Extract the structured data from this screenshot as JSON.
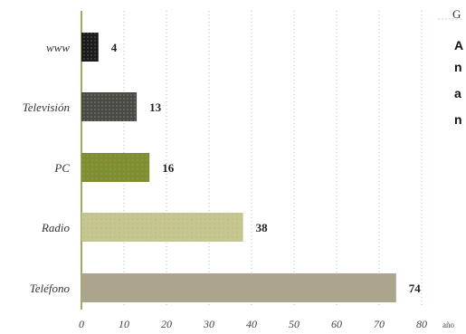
{
  "chart_data": {
    "type": "bar",
    "orientation": "horizontal",
    "categories": [
      "www",
      "Televisión",
      "PC",
      "Radio",
      "Teléfono"
    ],
    "values": [
      4,
      13,
      16,
      38,
      74
    ],
    "value_labels": [
      "4",
      "13",
      "16",
      "38",
      "74"
    ],
    "xlim": [
      0,
      80
    ],
    "xticks": [
      "0",
      "10",
      "20",
      "30",
      "40",
      "50",
      "60",
      "70",
      "80"
    ],
    "xunit": "año",
    "grid": "vertical dotted",
    "bar_colors": [
      "#1a1a1a",
      "#4a4a44",
      "#7d8f2e",
      "#c4c88e",
      "#a9a68c"
    ]
  },
  "side_text": [
    "G",
    "A",
    "n",
    "a",
    "n"
  ]
}
